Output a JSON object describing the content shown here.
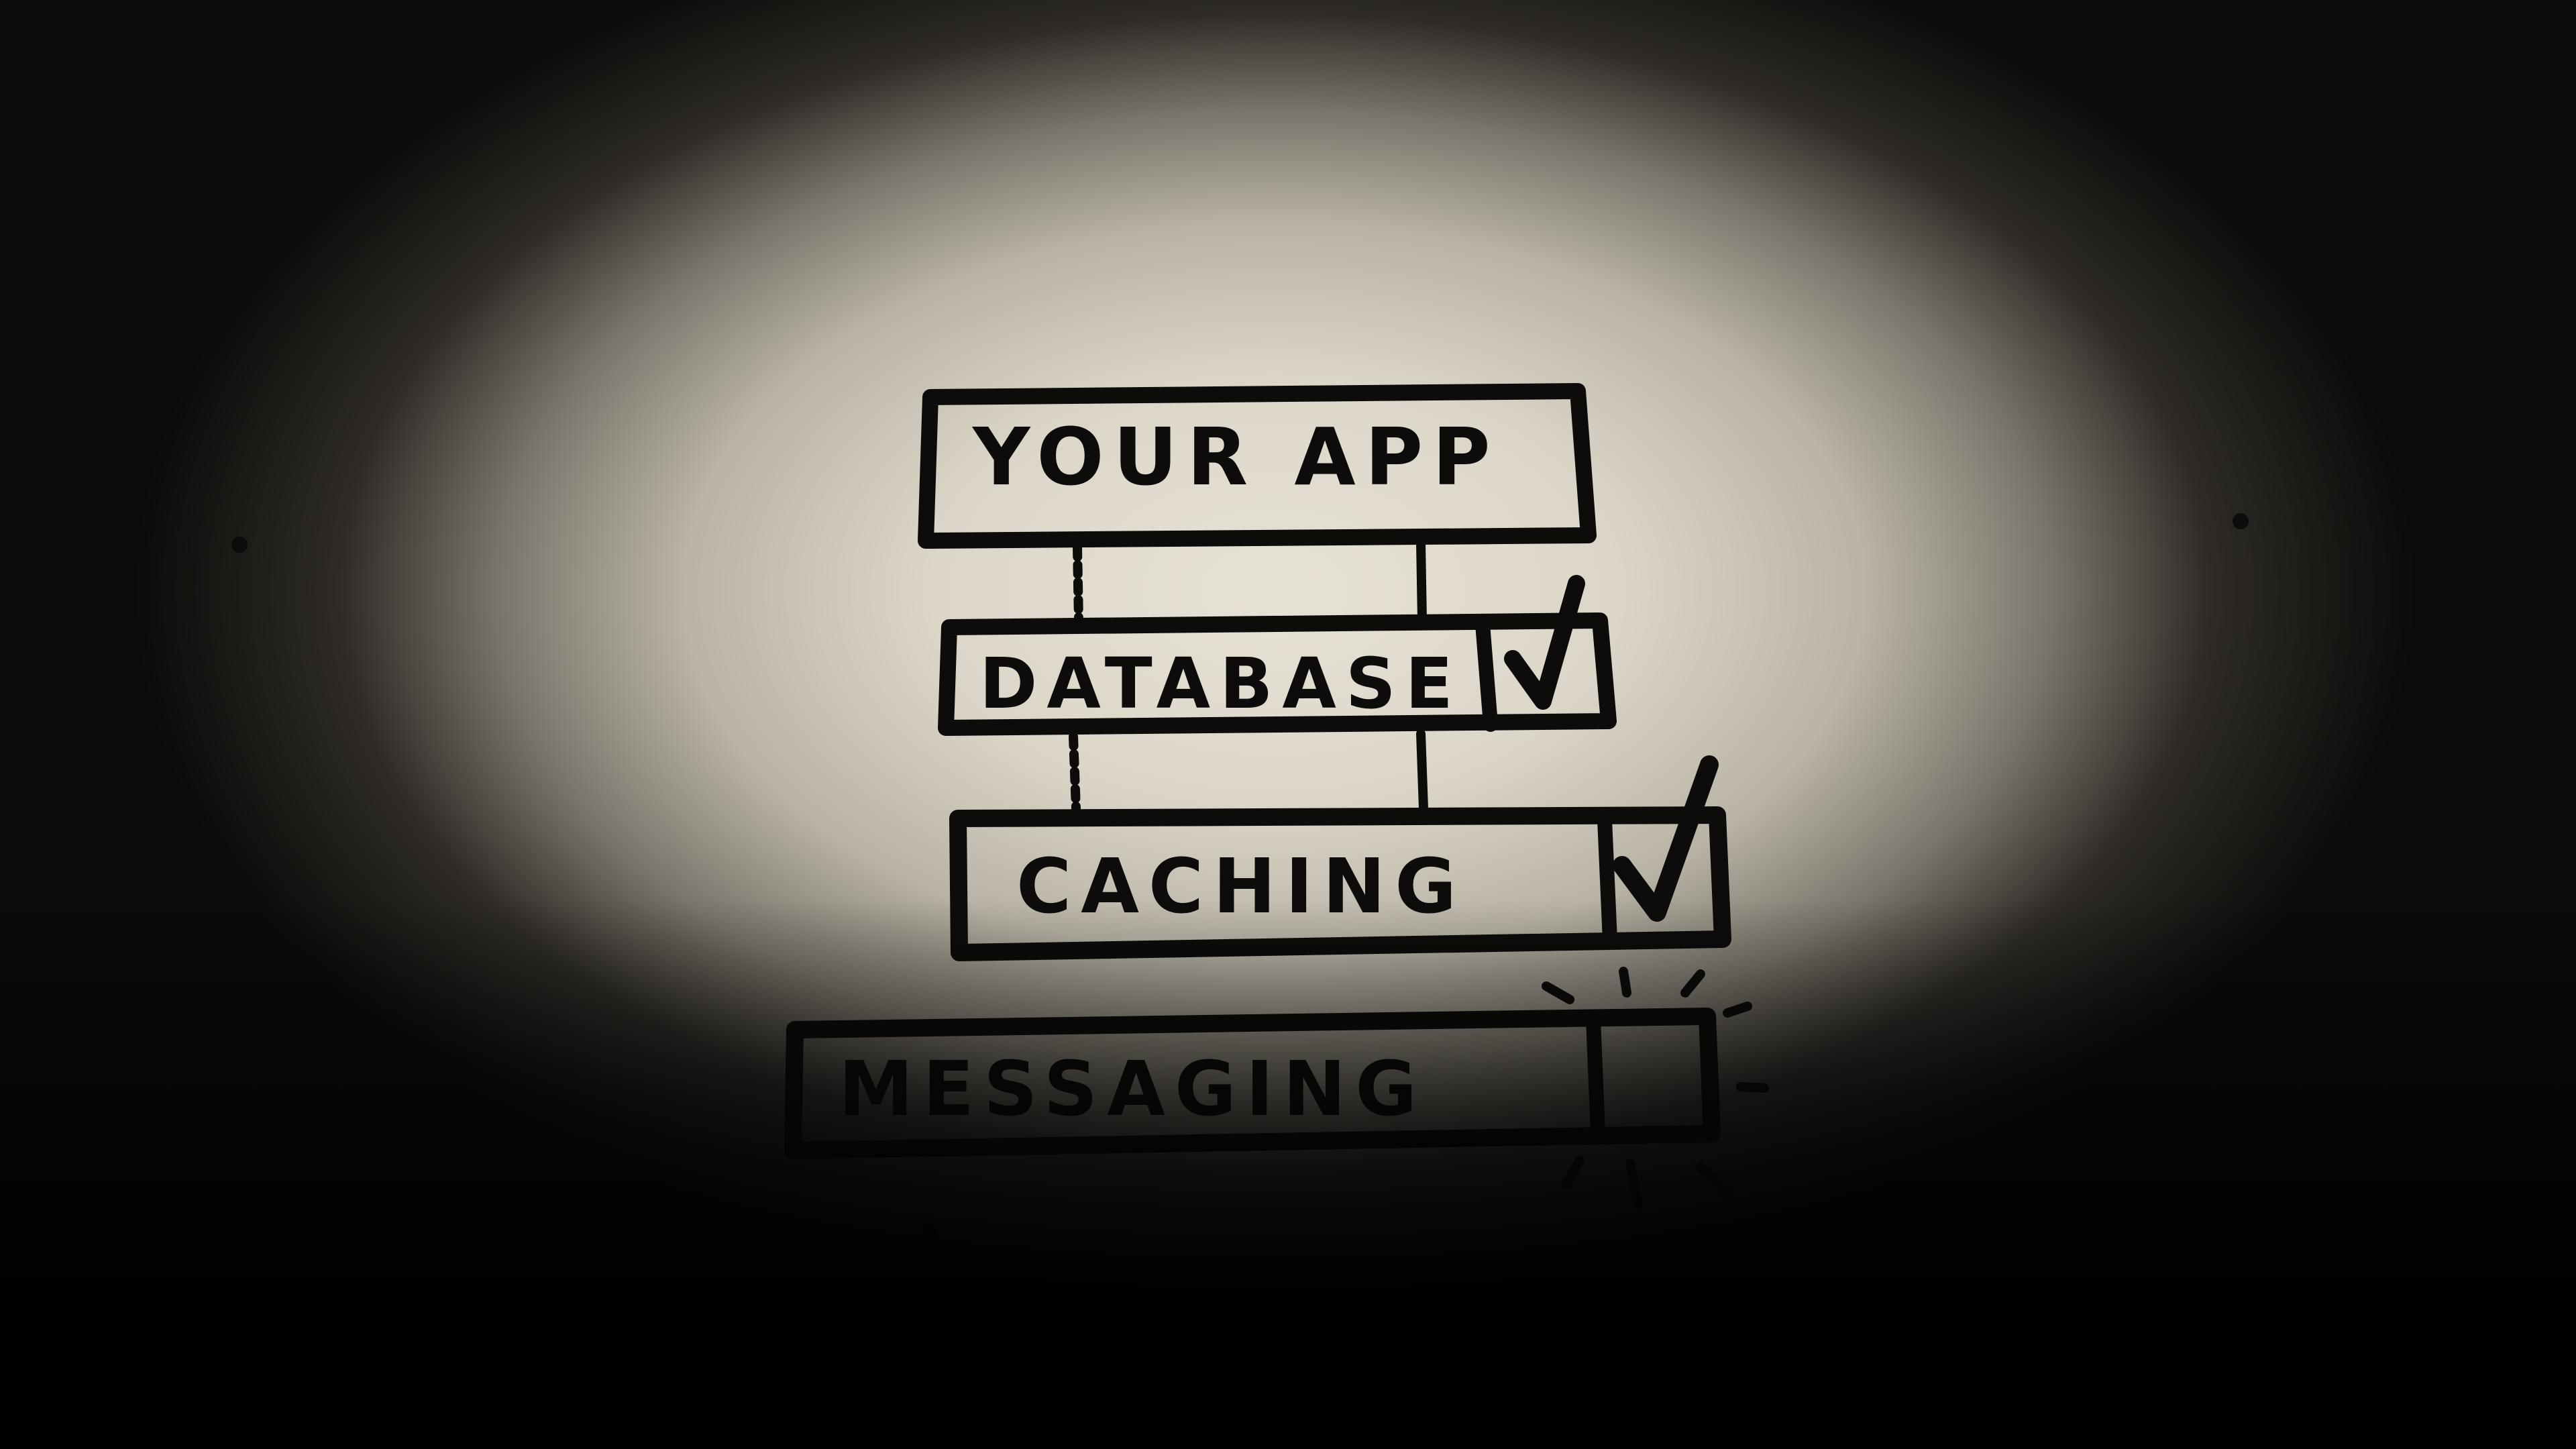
{
  "diagram": {
    "layers": [
      {
        "label": "YOUR APP",
        "checked": false,
        "has_checkbox": false
      },
      {
        "label": "DATABASE",
        "checked": true,
        "has_checkbox": true
      },
      {
        "label": "CACHING",
        "checked": true,
        "has_checkbox": true
      },
      {
        "label": "MESSAGING",
        "checked": false,
        "has_checkbox": true,
        "highlighted": true
      }
    ],
    "colors": {
      "ink": "#0d0c0a",
      "paper": "#e4dfd3",
      "vignette": "#0b0a08"
    }
  }
}
